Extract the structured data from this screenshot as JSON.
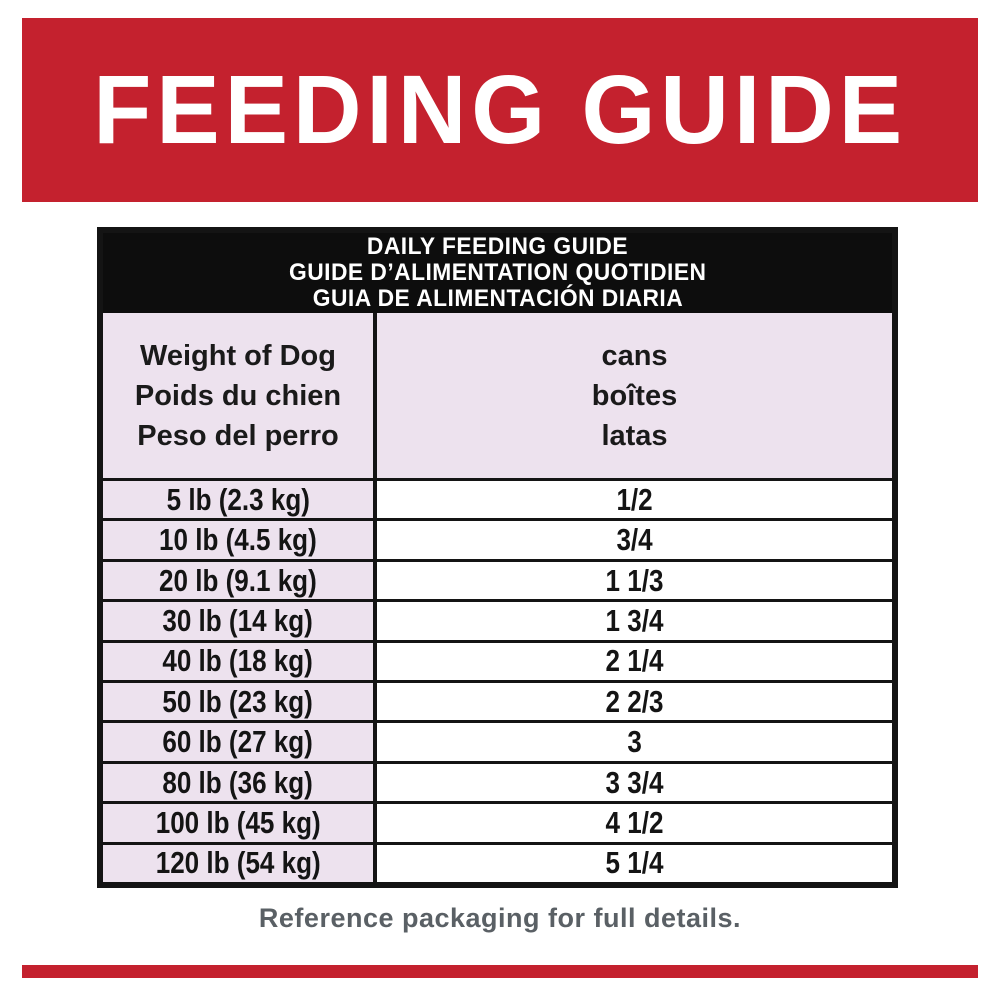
{
  "colors": {
    "red": "#C4212E",
    "pink": "#EDE2EE",
    "band_black": "#0D0D0D",
    "note_gray": "#5A6065"
  },
  "banner": {
    "title": "FEEDING GUIDE"
  },
  "table": {
    "title_lines": {
      "en": "DAILY FEEDING GUIDE",
      "fr": "GUIDE D’ALIMENTATION QUOTIDIEN",
      "es": "GUIA DE ALIMENTACIÓN DIARIA"
    },
    "columns": {
      "weight": {
        "en": "Weight of Dog",
        "fr": "Poids du chien",
        "es": "Peso del perro"
      },
      "amount": {
        "en": "cans",
        "fr": "boîtes",
        "es": "latas"
      }
    },
    "rows": [
      {
        "weight": "5 lb (2.3 kg)",
        "amount": "1/2"
      },
      {
        "weight": "10 lb (4.5 kg)",
        "amount": "3/4"
      },
      {
        "weight": "20 lb (9.1 kg)",
        "amount": "1 1/3"
      },
      {
        "weight": "30 lb (14 kg)",
        "amount": "1 3/4"
      },
      {
        "weight": "40 lb (18 kg)",
        "amount": "2 1/4"
      },
      {
        "weight": "50 lb (23 kg)",
        "amount": "2 2/3"
      },
      {
        "weight": "60 lb (27 kg)",
        "amount": "3"
      },
      {
        "weight": "80 lb (36 kg)",
        "amount": "3 3/4"
      },
      {
        "weight": "100 lb (45 kg)",
        "amount": "4 1/2"
      },
      {
        "weight": "120 lb (54 kg)",
        "amount": "5 1/4"
      }
    ]
  },
  "footer": {
    "note": "Reference packaging for full details."
  }
}
